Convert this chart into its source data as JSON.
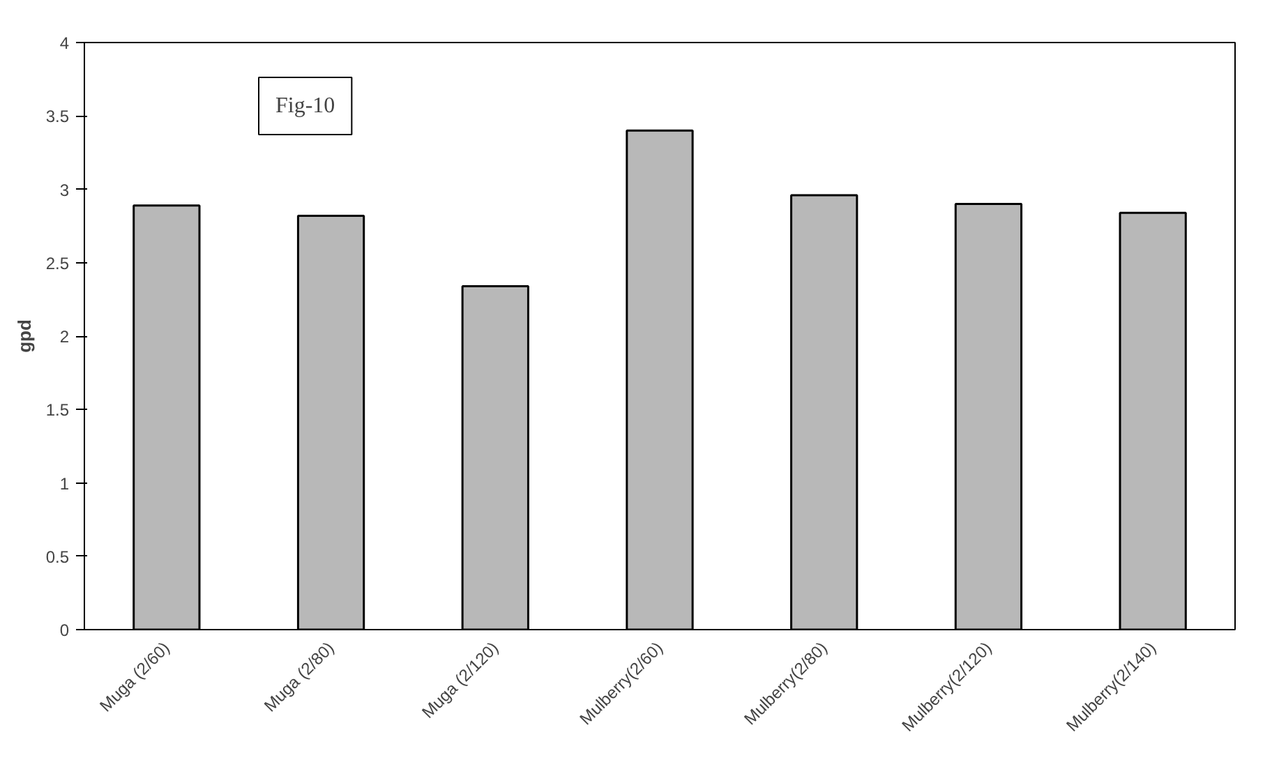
{
  "chart_data": {
    "type": "bar",
    "ylabel": "gpd",
    "categories": [
      "Muga (2/60)",
      "Muga (2/80)",
      "Muga (2/120)",
      "Mulberry(2/60)",
      "Mulberry(2/80)",
      "Mulberry(2/120)",
      "Mulberry(2/140)"
    ],
    "values": [
      2.89,
      2.82,
      2.34,
      3.4,
      2.96,
      2.9,
      2.84
    ],
    "color": "#b8b8b8",
    "ylim": [
      0,
      4
    ],
    "yticks": [
      0,
      0.5,
      1,
      1.5,
      2,
      2.5,
      3,
      3.5,
      4
    ],
    "grid": false,
    "annotations": [
      "Fig-10"
    ]
  }
}
